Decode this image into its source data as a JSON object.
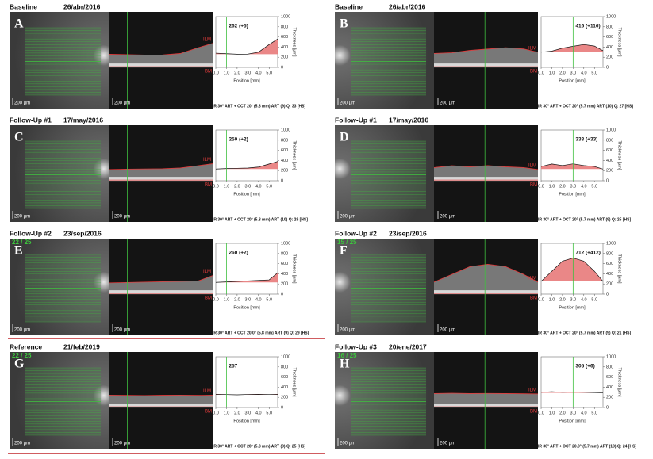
{
  "axes": {
    "ylim": [
      0,
      1000
    ],
    "yticks": [
      0,
      200,
      400,
      600,
      800,
      1000
    ],
    "xlim": [
      0,
      5.8
    ],
    "xticks": [
      {
        "value": 0,
        "label": "0.0"
      },
      {
        "value": 1,
        "label": "1.0"
      },
      {
        "value": 2,
        "label": "2.0"
      },
      {
        "value": 3,
        "label": "3.0"
      },
      {
        "value": 4,
        "label": "4.0"
      },
      {
        "value": 5,
        "label": "5.0"
      }
    ],
    "ylabel": "Thickness [µm]",
    "xlabel": "Position [mm]",
    "scale_bar": "200 µm",
    "ilm": "ILM",
    "bm": "BM"
  },
  "panels": [
    {
      "title": "Baseline",
      "date": "26/abr/2016",
      "letter": "A",
      "center_label": "262 (+5)",
      "cursor": 1,
      "x": [
        0,
        1,
        2,
        3,
        4,
        5,
        5.8
      ],
      "profile": [
        280,
        270,
        260,
        262,
        300,
        450,
        560
      ],
      "footer": "IR 30° ART + OCT 20° (5.8 mm) ART (9) Q: 33 [HS]"
    },
    {
      "title": "Baseline",
      "date": "26/abr/2016",
      "letter": "B",
      "center_label": "416 (+116)",
      "cursor": 3,
      "x": [
        0,
        1,
        2,
        3,
        4,
        5,
        5.8
      ],
      "profile": [
        300,
        320,
        380,
        416,
        450,
        420,
        330
      ],
      "footer": "IR 30° ART + OCT 20° (5.7 mm) ART (10) Q: 27 [HS]"
    },
    {
      "title": "Follow-Up #1",
      "date": "17/may/2016",
      "letter": "C",
      "center_label": "250 (+2)",
      "cursor": 1,
      "x": [
        0,
        1,
        2,
        3,
        4,
        5,
        5.8
      ],
      "profile": [
        230,
        240,
        245,
        250,
        270,
        330,
        380
      ],
      "footer": "IR 30° ART + OCT 20° (5.8 mm) ART (10) Q: 29 [HS]"
    },
    {
      "title": "Follow-Up #1",
      "date": "17/may/2016",
      "letter": "D",
      "center_label": "333 (+33)",
      "cursor": 3,
      "x": [
        0,
        1,
        2,
        3,
        4,
        5,
        5.8
      ],
      "profile": [
        280,
        330,
        300,
        333,
        300,
        280,
        230
      ],
      "footer": "IR 30° ART + OCT 20° (5.7 mm) ART (9) Q: 25 [HS]"
    },
    {
      "title": "Follow-Up #2",
      "date": "23/sep/2016",
      "letter": "E",
      "counter": "22 / 25",
      "center_label": "260 (+2)",
      "cursor": 1,
      "x": [
        0,
        1,
        2,
        3,
        4,
        5,
        5.8
      ],
      "profile": [
        230,
        240,
        250,
        260,
        270,
        280,
        420
      ],
      "footer": "IR 30° ART + OCT 20.0° (5.8 mm) ART (9) Q: 29 [HS]"
    },
    {
      "title": "Follow-Up #2",
      "date": "23/sep/2016",
      "letter": "F",
      "counter": "15 / 25",
      "center_label": "712 (+412)",
      "cursor": 3,
      "x": [
        0,
        1,
        2,
        3,
        4,
        5,
        5.8
      ],
      "profile": [
        250,
        450,
        650,
        712,
        650,
        450,
        250
      ],
      "footer": "IR 30° ART + OCT 20° (5.7 mm) ART (9) Q: 21 [HS]"
    },
    {
      "title": "Reference",
      "date": "21/feb/2019",
      "letter": "G",
      "counter": "22 / 25",
      "center_label": "257",
      "cursor": 1,
      "x": [
        0,
        1,
        2,
        3,
        4,
        5,
        5.8
      ],
      "profile": [
        260,
        255,
        250,
        257,
        260,
        255,
        260
      ],
      "footer": "IR 30° ART + OCT 20° (5.8 mm) ART (9) Q: 25 [HS]"
    },
    {
      "title": "Follow-Up #3",
      "date": "20/ene/2017",
      "letter": "H",
      "counter": "16 / 25",
      "center_label": "305 (+6)",
      "cursor": 3,
      "x": [
        0,
        1,
        2,
        3,
        4,
        5,
        5.8
      ],
      "profile": [
        300,
        310,
        300,
        305,
        300,
        295,
        290
      ],
      "footer": "IR 30° ART + OCT 20.0° (5.7 mm) ART (10) Q: 24 [HS]"
    }
  ]
}
